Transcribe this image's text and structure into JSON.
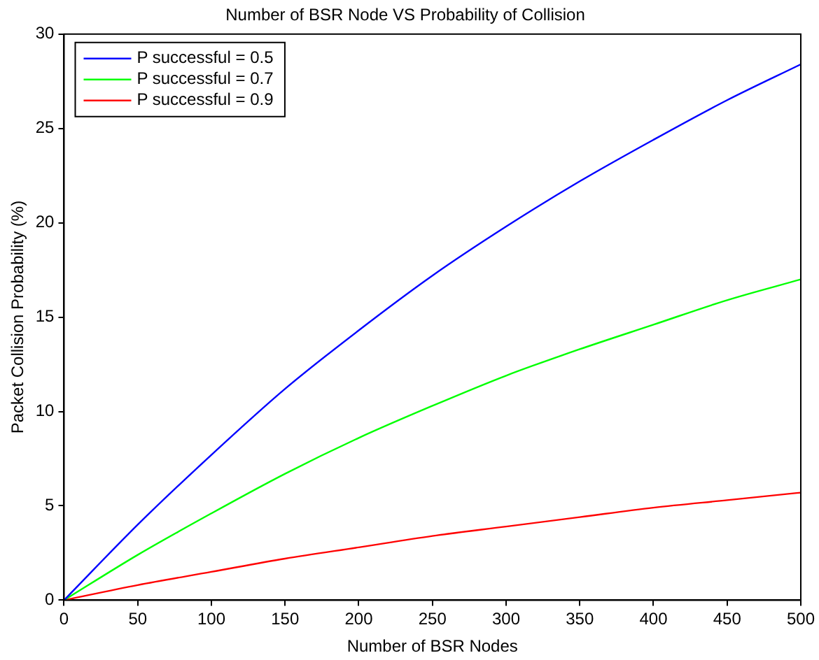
{
  "chart_data": {
    "type": "line",
    "title": "Number of BSR Node VS Probability of Collision",
    "xlabel": "Number of BSR Nodes",
    "ylabel": "Packet Collision Probability (%)",
    "x": [
      0,
      50,
      100,
      150,
      200,
      250,
      300,
      350,
      400,
      450,
      500
    ],
    "series": [
      {
        "name": "P successful = 0.5",
        "color": "#0000ff",
        "values": [
          0,
          4.0,
          7.7,
          11.2,
          14.3,
          17.2,
          19.8,
          22.2,
          24.4,
          26.5,
          28.4
        ]
      },
      {
        "name": "P successful = 0.7",
        "color": "#00ff00",
        "values": [
          0,
          2.4,
          4.6,
          6.7,
          8.6,
          10.3,
          11.9,
          13.3,
          14.6,
          15.9,
          17.0
        ]
      },
      {
        "name": "P successful = 0.9",
        "color": "#ff0000",
        "values": [
          0,
          0.8,
          1.5,
          2.2,
          2.8,
          3.4,
          3.9,
          4.4,
          4.9,
          5.3,
          5.7
        ]
      }
    ],
    "xlim": [
      0,
      500
    ],
    "xticks": [
      0,
      50,
      100,
      150,
      200,
      250,
      300,
      350,
      400,
      450,
      500
    ],
    "ylim": [
      0,
      30
    ],
    "yticks": [
      0,
      5,
      10,
      15,
      20,
      25,
      30
    ],
    "grid": false,
    "legend": "top left",
    "marker": "none",
    "line_style": "solid"
  }
}
